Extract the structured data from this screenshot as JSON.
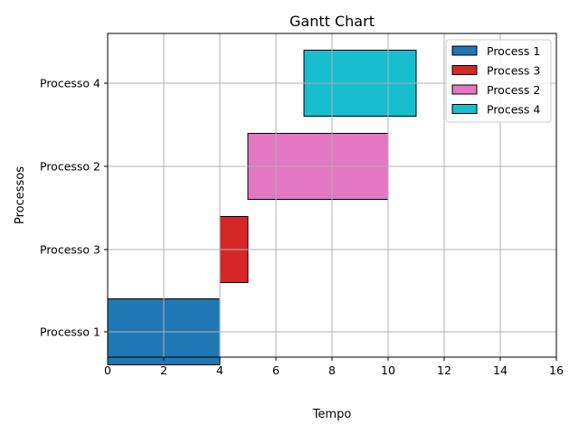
{
  "chart_data": {
    "type": "bar",
    "orientation": "horizontal",
    "title": "Gantt Chart",
    "xlabel": "Tempo",
    "ylabel": "Processos",
    "xlim": [
      0,
      16
    ],
    "xticks": [
      0,
      2,
      4,
      6,
      8,
      10,
      12,
      14,
      16
    ],
    "grid": true,
    "legend_position": "top-right",
    "categories": [
      "Processo 1",
      "Processo 3",
      "Processo 2",
      "Processo 4"
    ],
    "series": [
      {
        "name": "Process 1",
        "category": "Processo 1",
        "start": 0,
        "end": 4,
        "color": "#1f77b4"
      },
      {
        "name": "Process 3",
        "category": "Processo 3",
        "start": 4,
        "end": 5,
        "color": "#d62728"
      },
      {
        "name": "Process 2",
        "category": "Processo 2",
        "start": 5,
        "end": 10,
        "color": "#e377c2"
      },
      {
        "name": "Process 4",
        "category": "Processo 4",
        "start": 7,
        "end": 11,
        "color": "#17becf"
      }
    ]
  }
}
